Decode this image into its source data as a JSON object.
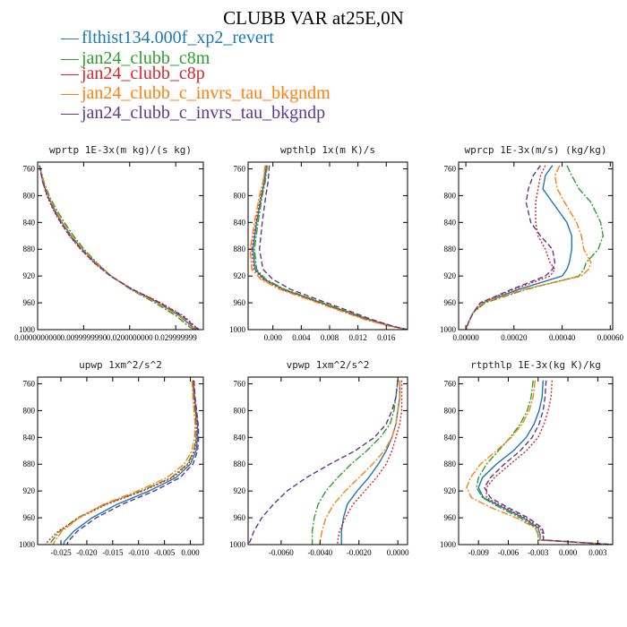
{
  "title": "CLUBB VAR at25E,0N",
  "colors": {
    "blue": "#1f77b4",
    "green": "#2ca02c",
    "red": "#d62728",
    "orange": "#ff7f0e",
    "purple": "#5b3a8e"
  },
  "legend": [
    {
      "symbol": "—",
      "label": "flthist134.000f_xp2_revert",
      "color": "#1f77b4",
      "dash": "solid"
    },
    {
      "symbol": "—",
      "label": "jan24_clubb_c8m",
      "color": "#2ca02c",
      "dash": "dashdot"
    },
    {
      "symbol": "—",
      "label": "jan24_clubb_c8p",
      "color": "#d62728",
      "dash": "dotted"
    },
    {
      "symbol": "—",
      "label": "jan24_clubb_c_invrs_tau_bkgndm",
      "color": "#ff7f0e",
      "dash": "dashdot"
    },
    {
      "symbol": "—",
      "label": "jan24_clubb_c_invrs_tau_bkgndp",
      "color": "#5b3a8e",
      "dash": "dashed"
    }
  ],
  "chart_data": [
    {
      "type": "line",
      "title": "wprtp  1E-3x(m kg)/(s kg)",
      "xlim": [
        0.0,
        0.036
      ],
      "ylim": [
        750,
        1000
      ],
      "y_inverted": true,
      "x_ticks": [
        0.0,
        0.0099999,
        0.0199999,
        0.0299999
      ],
      "x_tick_labels": [
        "0.0000000000",
        "0.0099999990",
        "0.0200000000",
        "0.029999999"
      ],
      "y_ticks": [
        760,
        800,
        840,
        880,
        920,
        960,
        1000
      ],
      "y": [
        755,
        780,
        800,
        820,
        840,
        860,
        880,
        900,
        920,
        940,
        960,
        980,
        995,
        1000
      ],
      "series": [
        {
          "name": "flthist134.000f_xp2_revert",
          "x": [
            0.0004,
            0.0012,
            0.0022,
            0.0036,
            0.0053,
            0.0073,
            0.0097,
            0.0126,
            0.016,
            0.0205,
            0.0262,
            0.031,
            0.0335,
            0.0345
          ]
        },
        {
          "name": "jan24_clubb_c8m",
          "x": [
            0.0004,
            0.0014,
            0.0025,
            0.004,
            0.0058,
            0.0078,
            0.0101,
            0.0128,
            0.016,
            0.0202,
            0.0255,
            0.0302,
            0.0328,
            0.034
          ]
        },
        {
          "name": "jan24_clubb_c8p",
          "x": [
            0.0004,
            0.0011,
            0.002,
            0.0033,
            0.0049,
            0.0069,
            0.0093,
            0.0122,
            0.0158,
            0.0207,
            0.0268,
            0.0318,
            0.0342,
            0.0352
          ]
        },
        {
          "name": "jan24_clubb_c_invrs_tau_bkgndm",
          "x": [
            0.0004,
            0.0013,
            0.0023,
            0.0037,
            0.0054,
            0.0074,
            0.0098,
            0.0126,
            0.016,
            0.0204,
            0.026,
            0.0308,
            0.0333,
            0.0345
          ]
        },
        {
          "name": "jan24_clubb_c_invrs_tau_bkgndp",
          "x": [
            0.0004,
            0.0011,
            0.0021,
            0.0034,
            0.005,
            0.007,
            0.0094,
            0.0123,
            0.0158,
            0.0206,
            0.0266,
            0.0315,
            0.034,
            0.035
          ]
        }
      ]
    },
    {
      "type": "line",
      "title": "wpthlp  1x(m K)/s",
      "xlim": [
        -0.0035,
        0.019
      ],
      "ylim": [
        750,
        1000
      ],
      "y_inverted": true,
      "x_ticks": [
        0.0,
        0.004,
        0.008,
        0.012,
        0.016
      ],
      "x_tick_labels": [
        "0.000",
        "0.004",
        "0.008",
        "0.012",
        "0.016"
      ],
      "y_ticks": [
        760,
        800,
        840,
        880,
        920,
        960,
        1000
      ],
      "y": [
        755,
        780,
        800,
        840,
        880,
        910,
        925,
        940,
        955,
        970,
        985,
        995,
        1000
      ],
      "series": [
        {
          "name": "flthist134.000f_xp2_revert",
          "x": [
            -0.0009,
            -0.0012,
            -0.0016,
            -0.0023,
            -0.0028,
            -0.0025,
            -0.0012,
            0.0015,
            0.0055,
            0.0095,
            0.0135,
            0.0168,
            0.019
          ]
        },
        {
          "name": "jan24_clubb_c8m",
          "x": [
            -0.0008,
            -0.0011,
            -0.0015,
            -0.0021,
            -0.0026,
            -0.0023,
            -0.001,
            0.0017,
            0.0057,
            0.0097,
            0.0137,
            0.0169,
            0.019
          ]
        },
        {
          "name": "jan24_clubb_c8p",
          "x": [
            -0.001,
            -0.0013,
            -0.0017,
            -0.0024,
            -0.003,
            -0.0027,
            -0.0014,
            0.0013,
            0.0053,
            0.0093,
            0.0133,
            0.0167,
            0.019
          ]
        },
        {
          "name": "jan24_clubb_c_invrs_tau_bkgndm",
          "x": [
            -0.0011,
            -0.0014,
            -0.0019,
            -0.0026,
            -0.0032,
            -0.003,
            -0.0017,
            0.001,
            0.005,
            0.009,
            0.013,
            0.0165,
            0.019
          ]
        },
        {
          "name": "jan24_clubb_c_invrs_tau_bkgndp",
          "x": [
            -0.0005,
            -0.0007,
            -0.001,
            -0.0015,
            -0.0019,
            -0.0014,
            0.0,
            0.0025,
            0.0063,
            0.0102,
            0.014,
            0.017,
            0.019
          ]
        }
      ]
    },
    {
      "type": "line",
      "title": "wprcp  1E-3x(m/s) (kg/kg)",
      "xlim": [
        -3e-05,
        0.00061
      ],
      "ylim": [
        750,
        1000
      ],
      "y_inverted": true,
      "x_ticks": [
        0.0,
        0.0002,
        0.0004,
        0.0006
      ],
      "x_tick_labels": [
        "0.00000",
        "0.00020",
        "0.00040",
        "0.00060"
      ],
      "y_ticks": [
        760,
        800,
        840,
        880,
        920,
        960,
        1000
      ],
      "y": [
        755,
        770,
        790,
        810,
        840,
        860,
        880,
        900,
        910,
        920,
        940,
        960,
        975,
        990,
        1000
      ],
      "series": [
        {
          "name": "flthist134.000f_xp2_revert",
          "x": [
            0.00036,
            0.00033,
            0.00032,
            0.00036,
            0.00042,
            0.00044,
            0.00044,
            0.00043,
            0.00042,
            0.0004,
            0.00022,
            7e-05,
            3e-05,
            1e-05,
            0.0
          ]
        },
        {
          "name": "jan24_clubb_c8m",
          "x": [
            0.00042,
            0.00044,
            0.00047,
            0.00052,
            0.00056,
            0.00057,
            0.00055,
            0.0005,
            0.00049,
            0.00047,
            0.00025,
            8e-05,
            3e-05,
            1e-05,
            0.0
          ]
        },
        {
          "name": "jan24_clubb_c8p",
          "x": [
            0.00033,
            0.00031,
            0.0003,
            0.00029,
            0.00029,
            0.0003,
            0.00033,
            0.00035,
            0.00037,
            0.00035,
            0.0002,
            6e-05,
            3e-05,
            1e-05,
            0.0
          ]
        },
        {
          "name": "jan24_clubb_c_invrs_tau_bkgndm",
          "x": [
            0.00039,
            0.00037,
            0.00038,
            0.00041,
            0.00046,
            0.00048,
            0.00049,
            0.00052,
            0.00051,
            0.00048,
            0.00024,
            7e-05,
            3e-05,
            1e-05,
            0.0
          ]
        },
        {
          "name": "jan24_clubb_c_invrs_tau_bkgndp",
          "x": [
            0.00031,
            0.00028,
            0.00026,
            0.00025,
            0.00027,
            0.00031,
            0.00036,
            0.00037,
            0.00036,
            0.00033,
            0.00019,
            6e-05,
            3e-05,
            1e-05,
            0.0
          ]
        }
      ]
    },
    {
      "type": "line",
      "title": "upwp  1xm^2/s^2",
      "xlim": [
        -0.0295,
        0.0025
      ],
      "ylim": [
        750,
        1000
      ],
      "y_inverted": true,
      "x_ticks": [
        -0.025,
        -0.02,
        -0.015,
        -0.01,
        -0.005,
        0.0
      ],
      "x_tick_labels": [
        "-0.025",
        "-0.020",
        "-0.015",
        "-0.010",
        "-0.005",
        "0.000"
      ],
      "y_ticks": [
        760,
        800,
        840,
        880,
        920,
        960,
        1000
      ],
      "y": [
        755,
        780,
        800,
        820,
        840,
        860,
        880,
        900,
        920,
        940,
        960,
        980,
        995,
        1000
      ],
      "series": [
        {
          "name": "flthist134.000f_xp2_revert",
          "x": [
            0.0006,
            0.0008,
            0.0011,
            0.0014,
            0.0014,
            0.0011,
            0.0,
            -0.0028,
            -0.008,
            -0.0142,
            -0.019,
            -0.0225,
            -0.0243,
            -0.0245
          ]
        },
        {
          "name": "jan24_clubb_c8m",
          "x": [
            0.0005,
            0.0007,
            0.0009,
            0.0011,
            0.0011,
            0.0007,
            -0.0006,
            -0.0037,
            -0.0095,
            -0.0165,
            -0.0218,
            -0.0252,
            -0.0268,
            -0.0272
          ]
        },
        {
          "name": "jan24_clubb_c8p",
          "x": [
            0.0005,
            0.0007,
            0.001,
            0.0012,
            0.0012,
            0.0008,
            -0.0004,
            -0.0034,
            -0.0092,
            -0.0162,
            -0.0215,
            -0.0255,
            -0.0275,
            -0.028
          ]
        },
        {
          "name": "jan24_clubb_c_invrs_tau_bkgndm",
          "x": [
            0.0003,
            0.0005,
            0.0007,
            0.0009,
            0.0008,
            0.0003,
            -0.0012,
            -0.0045,
            -0.0102,
            -0.0168,
            -0.0215,
            -0.0248,
            -0.0262,
            -0.0265
          ]
        },
        {
          "name": "jan24_clubb_c_invrs_tau_bkgndp",
          "x": [
            0.0007,
            0.0009,
            0.0012,
            0.0015,
            0.0016,
            0.0014,
            0.0005,
            -0.002,
            -0.007,
            -0.0132,
            -0.0182,
            -0.0218,
            -0.0236,
            -0.0238
          ]
        }
      ]
    },
    {
      "type": "line",
      "title": "vpwp  1xm^2/s^2",
      "xlim": [
        -0.0077,
        0.0005
      ],
      "ylim": [
        750,
        1000
      ],
      "y_inverted": true,
      "x_ticks": [
        -0.006,
        -0.004,
        -0.002,
        0.0
      ],
      "x_tick_labels": [
        "-0.0060",
        "-0.0040",
        "-0.0020",
        "0.0000"
      ],
      "y_ticks": [
        760,
        800,
        840,
        880,
        920,
        960,
        1000
      ],
      "y": [
        755,
        780,
        800,
        820,
        840,
        860,
        880,
        900,
        920,
        940,
        960,
        980,
        995,
        1000
      ],
      "series": [
        {
          "name": "flthist134.000f_xp2_revert",
          "x": [
            0.0001,
            0.0001,
            0.0,
            -0.0001,
            -0.0003,
            -0.0006,
            -0.001,
            -0.0015,
            -0.0021,
            -0.0026,
            -0.0028,
            -0.0029,
            -0.0029,
            -0.0029
          ]
        },
        {
          "name": "jan24_clubb_c8m",
          "x": [
            0.0,
            -0.0001,
            -0.0002,
            -0.0004,
            -0.0009,
            -0.0016,
            -0.0024,
            -0.0031,
            -0.0037,
            -0.0041,
            -0.0043,
            -0.0044,
            -0.0044,
            -0.0044
          ]
        },
        {
          "name": "jan24_clubb_c8p",
          "x": [
            0.0002,
            0.0002,
            0.0002,
            0.0001,
            -0.0001,
            -0.0003,
            -0.0006,
            -0.0011,
            -0.0017,
            -0.0023,
            -0.0027,
            -0.003,
            -0.0031,
            -0.0031
          ]
        },
        {
          "name": "jan24_clubb_c_invrs_tau_bkgndm",
          "x": [
            0.0001,
            0.0001,
            0.0,
            -0.0001,
            -0.0003,
            -0.0007,
            -0.0013,
            -0.002,
            -0.0027,
            -0.0033,
            -0.0037,
            -0.0039,
            -0.004,
            -0.004
          ]
        },
        {
          "name": "jan24_clubb_c_invrs_tau_bkgndp",
          "x": [
            0.0,
            -0.0001,
            -0.0003,
            -0.0006,
            -0.0012,
            -0.0022,
            -0.0035,
            -0.0047,
            -0.0057,
            -0.0064,
            -0.007,
            -0.0074,
            -0.0076,
            -0.0077
          ]
        }
      ]
    },
    {
      "type": "line",
      "title": "rtpthlp  1E-3x(kg K)/kg",
      "xlim": [
        -0.011,
        0.0045
      ],
      "ylim": [
        750,
        1000
      ],
      "y_inverted": true,
      "x_ticks": [
        -0.009,
        -0.006,
        -0.003,
        0.0,
        0.003
      ],
      "x_tick_labels": [
        "-0.009",
        "-0.006",
        "-0.003",
        "0.000",
        "0.003"
      ],
      "y_ticks": [
        760,
        800,
        840,
        880,
        920,
        960,
        1000
      ],
      "y": [
        755,
        780,
        800,
        820,
        840,
        860,
        880,
        900,
        915,
        930,
        945,
        960,
        975,
        985,
        993,
        1000
      ],
      "series": [
        {
          "name": "flthist134.000f_xp2_revert",
          "x": [
            -0.0025,
            -0.0026,
            -0.0029,
            -0.0034,
            -0.0042,
            -0.0055,
            -0.0072,
            -0.0086,
            -0.009,
            -0.0085,
            -0.0065,
            -0.0045,
            -0.003,
            -0.0028,
            -0.0028,
            0.0045
          ]
        },
        {
          "name": "jan24_clubb_c8m",
          "x": [
            -0.0035,
            -0.0037,
            -0.0041,
            -0.0048,
            -0.0058,
            -0.007,
            -0.0082,
            -0.009,
            -0.0092,
            -0.0086,
            -0.0068,
            -0.0048,
            -0.0032,
            -0.003,
            -0.003,
            0.0045
          ]
        },
        {
          "name": "jan24_clubb_c8p",
          "x": [
            -0.0016,
            -0.0017,
            -0.002,
            -0.0024,
            -0.003,
            -0.0042,
            -0.0058,
            -0.0074,
            -0.0082,
            -0.0082,
            -0.0063,
            -0.0043,
            -0.0028,
            -0.0025,
            -0.0025,
            0.0045
          ]
        },
        {
          "name": "jan24_clubb_c_invrs_tau_bkgndm",
          "x": [
            -0.0033,
            -0.0035,
            -0.0039,
            -0.0046,
            -0.0057,
            -0.0072,
            -0.0088,
            -0.0098,
            -0.0102,
            -0.0097,
            -0.0077,
            -0.0052,
            -0.0033,
            -0.003,
            -0.003,
            0.0045
          ]
        },
        {
          "name": "jan24_clubb_c_invrs_tau_bkgndp",
          "x": [
            -0.0022,
            -0.0023,
            -0.0025,
            -0.0029,
            -0.0036,
            -0.0048,
            -0.0064,
            -0.0078,
            -0.0084,
            -0.0078,
            -0.006,
            -0.004,
            -0.0026,
            -0.0024,
            -0.0025,
            0.0045
          ]
        }
      ]
    }
  ]
}
